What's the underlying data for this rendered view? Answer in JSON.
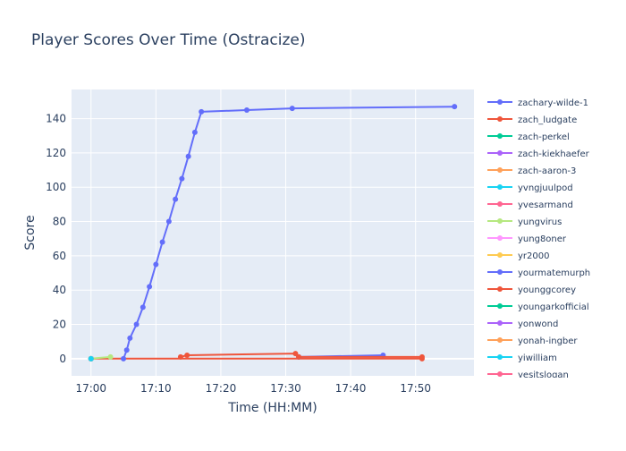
{
  "chart_data": {
    "type": "line",
    "title": "Player Scores Over Time (Ostracize)",
    "xlabel": "Time (HH:MM)",
    "ylabel": "Score",
    "xlim": [
      "16:57",
      "17:59"
    ],
    "ylim": [
      -10,
      157
    ],
    "x_ticks": [
      "17:00",
      "17:10",
      "17:20",
      "17:30",
      "17:40",
      "17:50"
    ],
    "y_ticks": [
      0,
      20,
      40,
      60,
      80,
      100,
      120,
      140
    ],
    "grid": true,
    "legend_position": "right",
    "series": [
      {
        "name": "zachary-wilde-1",
        "color": "#636efa",
        "points": [
          [
            "17:05",
            0
          ],
          [
            "17:05.5",
            5
          ],
          [
            "17:06",
            12
          ],
          [
            "17:07",
            20
          ],
          [
            "17:08",
            30
          ],
          [
            "17:09",
            42
          ],
          [
            "17:10",
            55
          ],
          [
            "17:11",
            68
          ],
          [
            "17:12",
            80
          ],
          [
            "17:13",
            93
          ],
          [
            "17:14",
            105
          ],
          [
            "17:15",
            118
          ],
          [
            "17:16",
            132
          ],
          [
            "17:17",
            144
          ],
          [
            "17:24",
            145
          ],
          [
            "17:31",
            146
          ],
          [
            "17:56",
            147
          ]
        ]
      },
      {
        "name": "zach_ludgate",
        "color": "#ef553b",
        "points": [
          [
            "17:00",
            0
          ],
          [
            "17:51",
            0
          ]
        ]
      },
      {
        "name": "zach-perkel",
        "color": "#00cc96",
        "points": [
          [
            "17:00",
            0
          ]
        ]
      },
      {
        "name": "zach-kiekhaefer",
        "color": "#ab63fa",
        "points": [
          [
            "17:00",
            0
          ]
        ]
      },
      {
        "name": "zach-aaron-3",
        "color": "#ffa15a",
        "points": [
          [
            "17:00",
            0
          ]
        ]
      },
      {
        "name": "yvngjuulpod",
        "color": "#19d3f3",
        "points": [
          [
            "17:00",
            0
          ]
        ]
      },
      {
        "name": "yvesarmand",
        "color": "#ff6692",
        "points": [
          [
            "17:00",
            0
          ]
        ]
      },
      {
        "name": "yungvirus",
        "color": "#b6e880",
        "points": [
          [
            "17:00",
            0
          ],
          [
            "17:03",
            1
          ]
        ]
      },
      {
        "name": "yung8oner",
        "color": "#ff97ff",
        "points": [
          [
            "17:00",
            0
          ]
        ]
      },
      {
        "name": "yr2000",
        "color": "#fecb52",
        "points": [
          [
            "17:00",
            0
          ]
        ]
      },
      {
        "name": "yourmatemurph",
        "color": "#636efa",
        "points": [
          [
            "17:32",
            1
          ],
          [
            "17:45",
            2
          ]
        ]
      },
      {
        "name": "younggcorey",
        "color": "#ef553b",
        "points": [
          [
            "17:13.8",
            1
          ],
          [
            "17:14.8",
            2
          ],
          [
            "17:31.5",
            3
          ],
          [
            "17:32",
            1
          ],
          [
            "17:51",
            1
          ]
        ]
      },
      {
        "name": "youngarkofficial",
        "color": "#00cc96",
        "points": [
          [
            "17:00",
            0
          ]
        ]
      },
      {
        "name": "yonwond",
        "color": "#ab63fa",
        "points": [
          [
            "17:00",
            0
          ]
        ]
      },
      {
        "name": "yonah-ingber",
        "color": "#ffa15a",
        "points": [
          [
            "17:00",
            0
          ]
        ]
      },
      {
        "name": "yiwilliam",
        "color": "#19d3f3",
        "points": [
          [
            "17:00",
            0
          ]
        ]
      },
      {
        "name": "yesitslogan",
        "color": "#ff6692",
        "points": []
      }
    ]
  }
}
